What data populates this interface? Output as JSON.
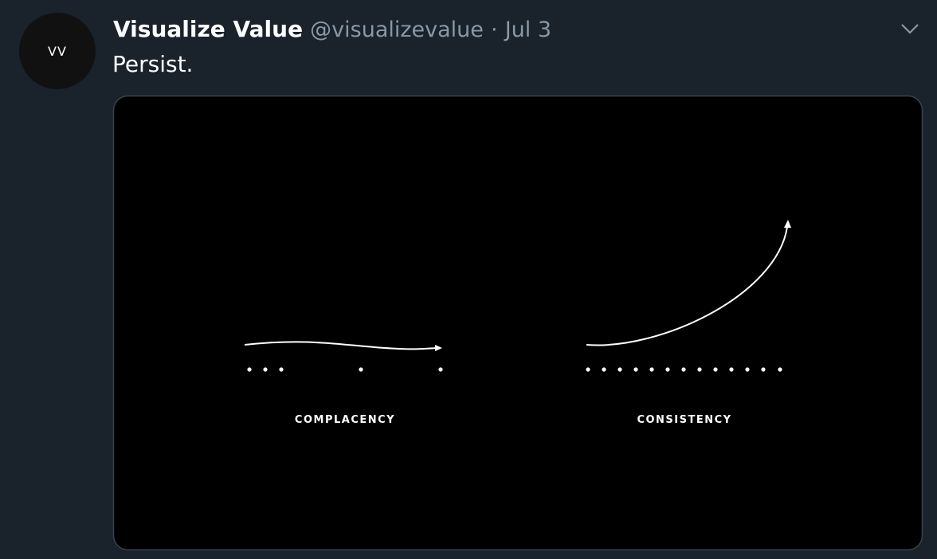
{
  "tweet": {
    "avatar_text": "VV",
    "name": "Visualize Value",
    "handle": "@visualizevalue",
    "separator": "·",
    "date": "Jul 3",
    "text": "Persist.",
    "image": {
      "left_label": "COMPLACENCY",
      "right_label": "CONSISTENCY"
    }
  }
}
